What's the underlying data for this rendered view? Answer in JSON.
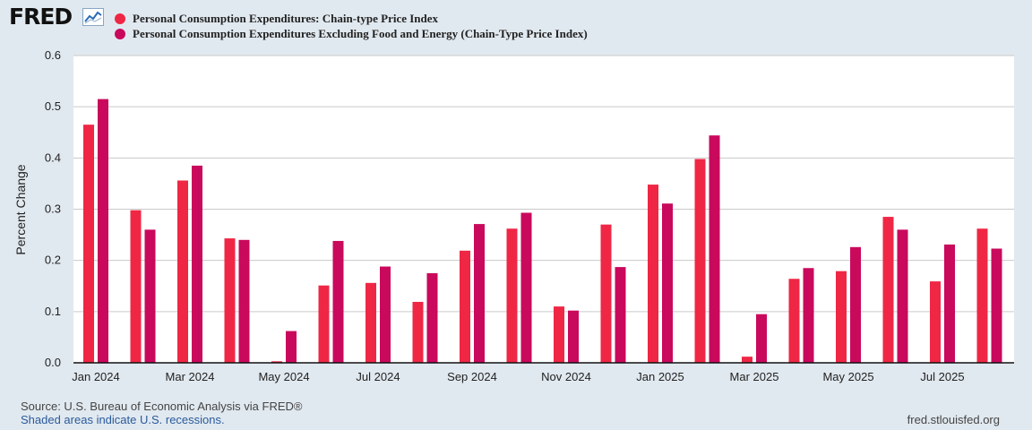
{
  "header": {
    "logo_text": "FRED",
    "logo_icon": "trend-line-icon",
    "legend": [
      {
        "label": "Personal Consumption Expenditures: Chain-type Price Index",
        "color": "#ef2745"
      },
      {
        "label": "Personal Consumption Expenditures Excluding Food and Energy (Chain-Type Price Index)",
        "color": "#c9095c"
      }
    ]
  },
  "footer": {
    "source": "Source: U.S. Bureau of Economic Analysis via FRED®",
    "note": "Shaded areas indicate U.S. recessions.",
    "site": "fred.stlouisfed.org"
  },
  "chart_data": {
    "type": "bar",
    "ylabel": "Percent Change",
    "ylim": [
      0,
      0.6
    ],
    "yticks": [
      "0.0",
      "0.1",
      "0.2",
      "0.3",
      "0.4",
      "0.5",
      "0.6"
    ],
    "categories": [
      "Jan 2024",
      "Feb 2024",
      "Mar 2024",
      "Apr 2024",
      "May 2024",
      "Jun 2024",
      "Jul 2024",
      "Aug 2024",
      "Sep 2024",
      "Oct 2024",
      "Nov 2024",
      "Dec 2024",
      "Jan 2025",
      "Feb 2025",
      "Mar 2025",
      "Apr 2025",
      "May 2025",
      "Jun 2025",
      "Jul 2025",
      "Aug 2025"
    ],
    "xtick_labels": [
      "Jan 2024",
      "Mar 2024",
      "May 2024",
      "Jul 2024",
      "Sep 2024",
      "Nov 2024",
      "Jan 2025",
      "Mar 2025",
      "May 2025",
      "Jul 2025"
    ],
    "series": [
      {
        "name": "Personal Consumption Expenditures: Chain-type Price Index",
        "color": "#ef2745",
        "values": [
          0.465,
          0.298,
          0.356,
          0.243,
          0.003,
          0.151,
          0.156,
          0.119,
          0.219,
          0.262,
          0.11,
          0.27,
          0.348,
          0.398,
          0.012,
          0.164,
          0.179,
          0.285,
          0.159,
          0.262
        ]
      },
      {
        "name": "Personal Consumption Expenditures Excluding Food and Energy (Chain-Type Price Index)",
        "color": "#c9095c",
        "values": [
          0.515,
          0.26,
          0.385,
          0.24,
          0.062,
          0.238,
          0.188,
          0.175,
          0.271,
          0.293,
          0.102,
          0.187,
          0.311,
          0.444,
          0.095,
          0.185,
          0.226,
          0.26,
          0.231,
          0.223
        ]
      }
    ],
    "grid": true,
    "legend_position": "top-left"
  }
}
